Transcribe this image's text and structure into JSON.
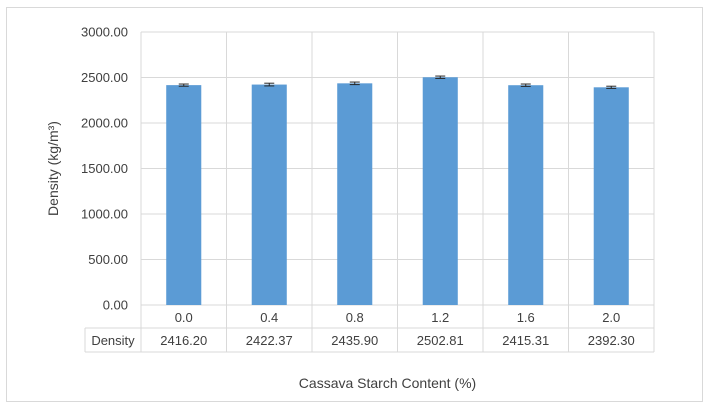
{
  "chart_data": {
    "type": "bar",
    "categories": [
      "0.0",
      "0.4",
      "0.8",
      "1.2",
      "1.6",
      "2.0"
    ],
    "series": [
      {
        "name": "Density",
        "values": [
          2416.2,
          2422.37,
          2435.9,
          2502.81,
          2415.31,
          2392.3
        ],
        "value_labels": [
          "2416.20",
          "2422.37",
          "2435.90",
          "2502.81",
          "2415.31",
          "2392.30"
        ],
        "error": [
          12,
          15,
          14,
          13,
          13,
          12
        ]
      }
    ],
    "xlabel": "Cassava Starch Content (%)",
    "ylabel": "Density (kg/m³)",
    "ylim": [
      0,
      3000
    ],
    "yticks": [
      "0.00",
      "500.00",
      "1000.00",
      "1500.00",
      "2000.00",
      "2500.00",
      "3000.00"
    ],
    "grid": true,
    "legend": "data table",
    "bar_color": "#5b9bd5"
  }
}
